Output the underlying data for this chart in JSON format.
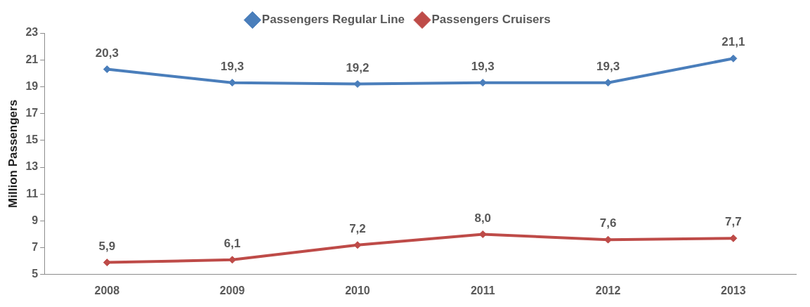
{
  "chart_data": {
    "type": "line",
    "ylabel": "Million Passengers",
    "categories": [
      "2008",
      "2009",
      "2010",
      "2011",
      "2012",
      "2013"
    ],
    "series": [
      {
        "name": "Passengers Regular Line",
        "color": "#4a7ebb",
        "values": [
          20.3,
          19.3,
          19.2,
          19.3,
          19.3,
          21.1
        ],
        "value_labels": [
          "20,3",
          "19,3",
          "19,2",
          "19,3",
          "19,3",
          "21,1"
        ]
      },
      {
        "name": "Passengers Cruisers",
        "color": "#be4b48",
        "values": [
          5.9,
          6.1,
          7.2,
          8.0,
          7.6,
          7.7
        ],
        "value_labels": [
          "5,9",
          "6,1",
          "7,2",
          "8,0",
          "7,6",
          "7,7"
        ]
      }
    ],
    "ylim": [
      5,
      23
    ],
    "yticks": [
      5,
      7,
      9,
      11,
      13,
      15,
      17,
      19,
      21,
      23
    ],
    "grid": false,
    "legend": "top",
    "marker": "diamond",
    "line_style": "solid"
  }
}
